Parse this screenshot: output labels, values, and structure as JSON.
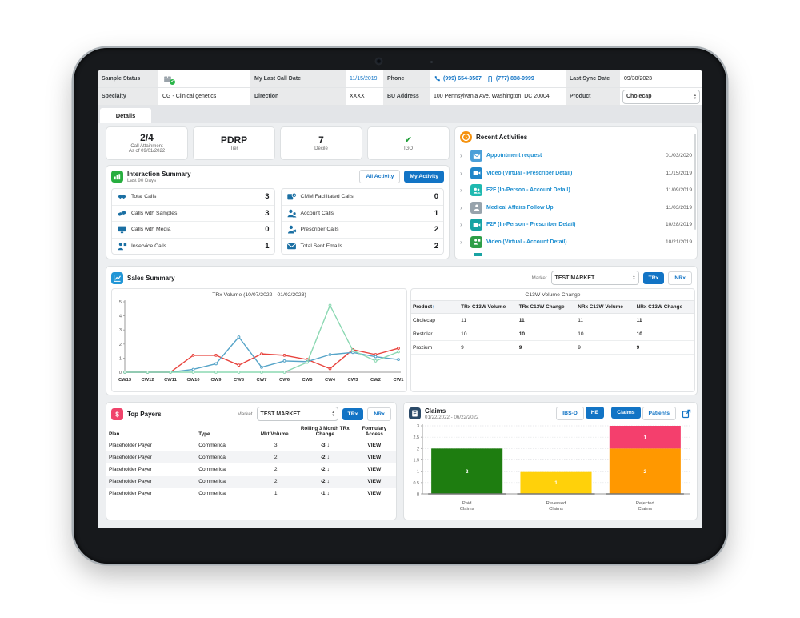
{
  "header": {
    "sample_status_label": "Sample Status",
    "specialty_label": "Specialty",
    "specialty_value": "CG - Clinical genetics",
    "my_last_call_date_label": "My Last Call Date",
    "my_last_call_date_value": "11/15/2019",
    "direction_label": "Direction",
    "direction_value": "XXXX",
    "phone_label": "Phone",
    "phone_1": "(999) 654-3567",
    "phone_2": "(777) 888-9999",
    "bu_address_label": "BU Address",
    "bu_address_value": "100 Pennsylvania Ave, Washington, DC 20004",
    "last_sync_date_label": "Last Sync Date",
    "last_sync_date_value": "09/30/2023",
    "product_label": "Product",
    "product_value": "Cholecap"
  },
  "tabs": {
    "details_label": "Details"
  },
  "kpis": [
    {
      "value": "2/4",
      "label": "Call Attainment",
      "sub": "As of 09/01/2022",
      "check": false
    },
    {
      "value": "PDRP",
      "label": "Tier",
      "sub": "",
      "check": false
    },
    {
      "value": "7",
      "label": "Decile",
      "sub": "",
      "check": false
    },
    {
      "value": "",
      "label": "IGO",
      "sub": "",
      "check": true
    }
  ],
  "interaction_summary": {
    "title": "Interaction Summary",
    "subtitle": "Last 90 Days",
    "all_activity_label": "All Activity",
    "my_activity_label": "My Activity",
    "left_rows": [
      {
        "icon": "handshake-icon",
        "label": "Total Calls",
        "value": "3"
      },
      {
        "icon": "samples-icon",
        "label": "Calls with Samples",
        "value": "3"
      },
      {
        "icon": "media-icon",
        "label": "Calls with Media",
        "value": "0"
      },
      {
        "icon": "inservice-icon",
        "label": "Inservice Calls",
        "value": "1"
      }
    ],
    "right_rows": [
      {
        "icon": "cmm-clock-icon",
        "label": "CMM Facilitated Calls",
        "value": "0"
      },
      {
        "icon": "account-people-icon",
        "label": "Account Calls",
        "value": "1"
      },
      {
        "icon": "prescriber-person-icon",
        "label": "Prescriber Calls",
        "value": "2"
      },
      {
        "icon": "envelope-icon",
        "label": "Total Sent Emails",
        "value": "2"
      }
    ]
  },
  "recent_activities": {
    "title": "Recent Activities",
    "items": [
      {
        "icon": "envelope-icon",
        "color": "#4a9fd8",
        "label": "Appointment request",
        "date": "01/03/2020"
      },
      {
        "icon": "video-icon",
        "color": "#1f86c9",
        "label": "Video (Virtual - Prescriber Detail)",
        "date": "11/15/2019"
      },
      {
        "icon": "people-icon",
        "color": "#1fb9b0",
        "label": "F2F (In-Person - Account Detail)",
        "date": "11/09/2019"
      },
      {
        "icon": "person-icon",
        "color": "#97a3ac",
        "label": "Medical Affairs Follow Up",
        "date": "11/03/2019"
      },
      {
        "icon": "video-icon",
        "color": "#16a3a3",
        "label": "F2F (In-Person - Prescriber Detail)",
        "date": "10/28/2019"
      },
      {
        "icon": "inservice-icon",
        "color": "#2d9e47",
        "label": "Video (Virtual - Account Detail)",
        "date": "10/21/2019"
      }
    ]
  },
  "sales_summary": {
    "title": "Sales Summary",
    "market_label": "Market",
    "market_value": "TEST MARKET",
    "trx_label": "TRx",
    "nrx_label": "NRx",
    "table": {
      "title": "C13W Volume Change",
      "headers": [
        "Product",
        "TRx C13W Volume",
        "TRx C13W Change",
        "NRx C13W Volume",
        "NRx C13W Change"
      ],
      "rows": [
        {
          "product": "Cholecap",
          "trx_vol": "11",
          "trx_chg": "11",
          "nrx_vol": "11",
          "nrx_chg": "11"
        },
        {
          "product": "Restolar",
          "trx_vol": "10",
          "trx_chg": "10",
          "nrx_vol": "10",
          "nrx_chg": "10"
        },
        {
          "product": "Prozium",
          "trx_vol": "9",
          "trx_chg": "9",
          "nrx_vol": "9",
          "nrx_chg": "9"
        }
      ]
    }
  },
  "top_payers": {
    "title": "Top Payers",
    "market_label": "Market",
    "market_value": "TEST MARKET",
    "trx_label": "TRx",
    "nrx_label": "NRx",
    "headers": [
      "Plan",
      "Type",
      "Mkt Volume",
      "Rolling 3 Month TRx Change",
      "Formulary Access"
    ],
    "rows": [
      {
        "plan": "Placeholder Payer",
        "type": "Commerical",
        "volume": "3",
        "change": "-3",
        "action": "VIEW"
      },
      {
        "plan": "Placeholder Payer",
        "type": "Commerical",
        "volume": "2",
        "change": "-2",
        "action": "VIEW"
      },
      {
        "plan": "Placeholder Payer",
        "type": "Commerical",
        "volume": "2",
        "change": "-2",
        "action": "VIEW"
      },
      {
        "plan": "Placeholder Payer",
        "type": "Commerical",
        "volume": "2",
        "change": "-2",
        "action": "VIEW"
      },
      {
        "plan": "Placeholder Payer",
        "type": "Commerical",
        "volume": "1",
        "change": "-1",
        "action": "VIEW"
      }
    ]
  },
  "claims": {
    "title": "Claims",
    "date_range": "01/22/2022 - 06/22/2022",
    "buttons": [
      "IBS-D",
      "HE",
      "Claims",
      "Patients"
    ]
  },
  "chart_data": [
    {
      "id": "trx_volume",
      "type": "line",
      "title": "TRx Volume (10/07/2022 - 01/02/2023)",
      "x": [
        "CW13",
        "CW12",
        "CW11",
        "CW10",
        "CW9",
        "CW8",
        "CW7",
        "CW6",
        "CW5",
        "CW4",
        "CW3",
        "CW2",
        "CW1"
      ],
      "xlabel": "",
      "ylabel": "",
      "ylim": [
        0,
        5
      ],
      "yticks": [
        0,
        1,
        2,
        3,
        4,
        5
      ],
      "grid": false,
      "legend": "none",
      "series": [
        {
          "name": "series-red",
          "color": "#e8433d",
          "values": [
            0,
            0,
            0,
            1.2,
            1.2,
            0.5,
            1.3,
            1.2,
            0.9,
            0.25,
            1.6,
            1.25,
            1.7
          ]
        },
        {
          "name": "series-blue",
          "color": "#56a4c8",
          "values": [
            0,
            0,
            0,
            0.2,
            0.6,
            2.5,
            0.35,
            0.8,
            0.75,
            1.25,
            1.4,
            1.1,
            0.9
          ]
        },
        {
          "name": "series-green",
          "color": "#8bd8b2",
          "values": [
            0,
            0,
            0,
            0,
            0,
            0,
            0,
            0,
            0.7,
            4.75,
            1.55,
            0.8,
            1.45
          ]
        }
      ]
    },
    {
      "id": "claims_chart",
      "type": "bar",
      "stacked": true,
      "title": "",
      "xlabel": "",
      "ylabel": "",
      "categories": [
        [
          "Paid",
          "Claims"
        ],
        [
          "Reversed",
          "Claims"
        ],
        [
          "Rejected",
          "Claims"
        ]
      ],
      "ylim": [
        0,
        3
      ],
      "yticks": [
        0,
        0.5,
        1,
        1.5,
        2,
        2.5,
        3
      ],
      "grid": true,
      "bars": [
        [
          {
            "value": 2,
            "color": "#1e7d10",
            "label": "2"
          }
        ],
        [
          {
            "value": 1,
            "color": "#ffd10a",
            "label": "1"
          }
        ],
        [
          {
            "value": 2,
            "color": "#ff9800",
            "label": "2"
          },
          {
            "value": 1,
            "color": "#f43f6d",
            "label": "1"
          }
        ]
      ]
    }
  ],
  "colors": {
    "accent_blue": "#1274c5",
    "link_blue": "#1e8fd0",
    "positive_green": "#1ea33c",
    "negative_red": "#e8413c",
    "interaction_icon_blue": "#1a6fa3",
    "activities_header_orange": "#f5920f",
    "interaction_header_green": "#27ae3f",
    "sales_header_blue": "#2196d6",
    "payers_header_pink": "#f0436b",
    "claims_header_navy": "#2b4a68"
  }
}
